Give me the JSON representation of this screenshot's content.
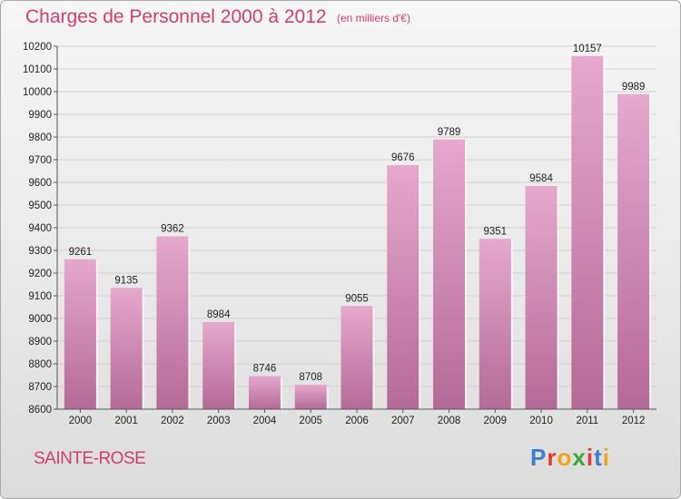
{
  "header": {
    "title": "Charges de Personnel 2000 à 2012",
    "subtitle": "(en milliers d'€)"
  },
  "footer": {
    "commune": "SAINTE-ROSE",
    "logo_text": "Proxiti"
  },
  "colors": {
    "title": "#d23d6a",
    "bar_top": "#e6a8cc",
    "bar_bottom": "#b46a96",
    "logo": [
      "#3a7fd0",
      "#e23b2e",
      "#f0a419",
      "#39a935",
      "#e23b2e",
      "#3a7fd0",
      "#f0a419"
    ]
  },
  "chart_data": {
    "type": "bar",
    "title": "Charges de Personnel 2000 à 2012",
    "subtitle": "(en milliers d'€)",
    "categories": [
      "2000",
      "2001",
      "2002",
      "2003",
      "2004",
      "2005",
      "2006",
      "2007",
      "2008",
      "2009",
      "2010",
      "2011",
      "2012"
    ],
    "values": [
      9261,
      9135,
      9362,
      8984,
      8746,
      8708,
      9055,
      9676,
      9789,
      9351,
      9584,
      10157,
      9989
    ],
    "ylim": [
      8600,
      10200
    ],
    "yticks": [
      8600,
      8700,
      8800,
      8900,
      9000,
      9100,
      9200,
      9300,
      9400,
      9500,
      9600,
      9700,
      9800,
      9900,
      10000,
      10100,
      10200
    ],
    "grid": true,
    "legend": "none"
  }
}
